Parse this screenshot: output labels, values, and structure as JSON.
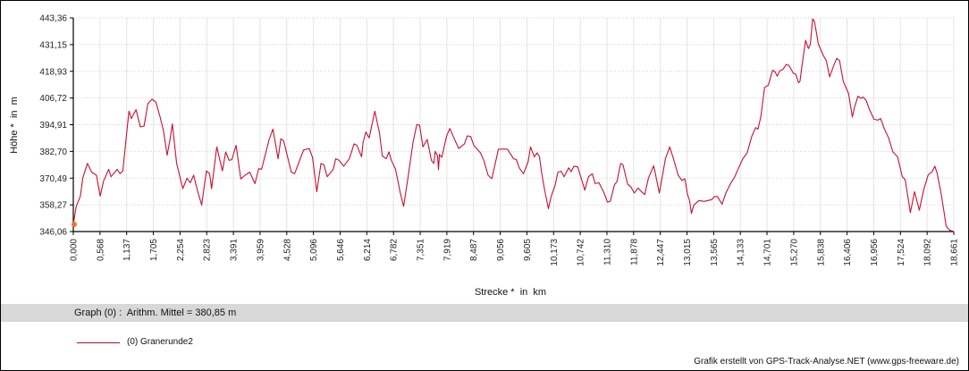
{
  "chart_data": {
    "type": "line",
    "title": "",
    "xlabel": "Strecke *  in  km",
    "ylabel": "Höhe *  in  m",
    "xlim": [
      0,
      18.661
    ],
    "ylim": [
      346.06,
      443.36
    ],
    "grid": true,
    "legend_position": "bottom-left",
    "y_ticks": [
      "346,06",
      "358,27",
      "370,49",
      "382,70",
      "394,91",
      "406,72",
      "418,93",
      "431,15",
      "443,36"
    ],
    "x_ticks": [
      "0,000",
      "0,568",
      "1,137",
      "1,705",
      "2,254",
      "2,823",
      "3,391",
      "3,959",
      "4,528",
      "5,096",
      "5,646",
      "6,214",
      "6,782",
      "7,351",
      "7,919",
      "8,487",
      "9,056",
      "9,605",
      "10,173",
      "10,742",
      "11,310",
      "11,878",
      "12,447",
      "13,015",
      "13,565",
      "14,133",
      "14,701",
      "15,270",
      "15,838",
      "16,406",
      "16,956",
      "17,524",
      "18,092",
      "18,661"
    ],
    "colors": {
      "series": "#c8102e",
      "marker": "#f07030",
      "grid": "#d0d0d0",
      "band": "#d8d8d8"
    },
    "series": [
      {
        "name": "(0) Granerunde2",
        "points": [
          [
            0.0,
            349.3
          ],
          [
            0.06,
            357.5
          ],
          [
            0.15,
            362.2
          ],
          [
            0.2,
            370.4
          ],
          [
            0.3,
            377.1
          ],
          [
            0.39,
            373.1
          ],
          [
            0.49,
            371.7
          ],
          [
            0.57,
            362.2
          ],
          [
            0.64,
            369.0
          ],
          [
            0.75,
            374.4
          ],
          [
            0.8,
            371.0
          ],
          [
            0.93,
            374.4
          ],
          [
            0.99,
            372.4
          ],
          [
            1.05,
            373.7
          ],
          [
            1.15,
            394.8
          ],
          [
            1.18,
            400.9
          ],
          [
            1.23,
            397.5
          ],
          [
            1.33,
            401.6
          ],
          [
            1.42,
            393.7
          ],
          [
            1.5,
            394.1
          ],
          [
            1.58,
            404.3
          ],
          [
            1.67,
            406.3
          ],
          [
            1.75,
            405.0
          ],
          [
            1.84,
            398.2
          ],
          [
            1.91,
            392.1
          ],
          [
            1.99,
            380.8
          ],
          [
            2.05,
            388.0
          ],
          [
            2.1,
            395.1
          ],
          [
            2.19,
            377.1
          ],
          [
            2.32,
            365.6
          ],
          [
            2.41,
            370.4
          ],
          [
            2.48,
            368.3
          ],
          [
            2.55,
            371.7
          ],
          [
            2.63,
            364.9
          ],
          [
            2.72,
            358.1
          ],
          [
            2.82,
            373.7
          ],
          [
            2.89,
            372.4
          ],
          [
            2.93,
            365.6
          ],
          [
            3.04,
            384.6
          ],
          [
            3.16,
            373.7
          ],
          [
            3.23,
            382.3
          ],
          [
            3.3,
            378.5
          ],
          [
            3.36,
            378.8
          ],
          [
            3.45,
            385.3
          ],
          [
            3.55,
            370.0
          ],
          [
            3.64,
            371.7
          ],
          [
            3.74,
            373.1
          ],
          [
            3.85,
            367.9
          ],
          [
            3.93,
            374.7
          ],
          [
            3.99,
            374.4
          ],
          [
            4.15,
            388.0
          ],
          [
            4.23,
            392.7
          ],
          [
            4.34,
            379.2
          ],
          [
            4.4,
            388.3
          ],
          [
            4.46,
            387.3
          ],
          [
            4.62,
            373.1
          ],
          [
            4.69,
            372.4
          ],
          [
            4.88,
            383.2
          ],
          [
            5.0,
            383.9
          ],
          [
            5.07,
            379.8
          ],
          [
            5.16,
            364.2
          ],
          [
            5.25,
            377.1
          ],
          [
            5.31,
            376.5
          ],
          [
            5.38,
            371.0
          ],
          [
            5.51,
            374.4
          ],
          [
            5.56,
            379.2
          ],
          [
            5.63,
            378.5
          ],
          [
            5.73,
            375.8
          ],
          [
            5.85,
            379.2
          ],
          [
            5.95,
            386.0
          ],
          [
            6.01,
            385.3
          ],
          [
            6.11,
            380.1
          ],
          [
            6.14,
            386.6
          ],
          [
            6.2,
            391.4
          ],
          [
            6.27,
            388.7
          ],
          [
            6.39,
            400.9
          ],
          [
            6.49,
            390.7
          ],
          [
            6.55,
            380.5
          ],
          [
            6.63,
            379.2
          ],
          [
            6.69,
            382.3
          ],
          [
            6.74,
            378.5
          ],
          [
            6.83,
            374.4
          ],
          [
            6.93,
            363.6
          ],
          [
            7.0,
            357.5
          ],
          [
            7.1,
            371.7
          ],
          [
            7.2,
            386.6
          ],
          [
            7.28,
            394.8
          ],
          [
            7.34,
            394.5
          ],
          [
            7.41,
            384.6
          ],
          [
            7.5,
            388.0
          ],
          [
            7.59,
            378.5
          ],
          [
            7.64,
            377.1
          ],
          [
            7.67,
            382.6
          ],
          [
            7.72,
            380.5
          ],
          [
            7.74,
            374.2
          ],
          [
            7.76,
            381.2
          ],
          [
            7.81,
            379.8
          ],
          [
            7.91,
            389.4
          ],
          [
            7.98,
            393.0
          ],
          [
            8.08,
            388.0
          ],
          [
            8.17,
            383.9
          ],
          [
            8.29,
            386.0
          ],
          [
            8.35,
            389.6
          ],
          [
            8.42,
            389.4
          ],
          [
            8.49,
            385.3
          ],
          [
            8.63,
            381.9
          ],
          [
            8.7,
            378.5
          ],
          [
            8.79,
            371.7
          ],
          [
            8.87,
            370.1
          ],
          [
            9.01,
            383.6
          ],
          [
            9.11,
            383.6
          ],
          [
            9.2,
            383.6
          ],
          [
            9.33,
            379.2
          ],
          [
            9.39,
            378.9
          ],
          [
            9.45,
            375.1
          ],
          [
            9.54,
            372.4
          ],
          [
            9.64,
            377.8
          ],
          [
            9.69,
            384.6
          ],
          [
            9.77,
            380.1
          ],
          [
            9.83,
            381.9
          ],
          [
            9.88,
            380.1
          ],
          [
            9.93,
            372.4
          ],
          [
            9.99,
            364.9
          ],
          [
            10.07,
            356.5
          ],
          [
            10.13,
            362.2
          ],
          [
            10.21,
            367.0
          ],
          [
            10.27,
            373.1
          ],
          [
            10.34,
            373.5
          ],
          [
            10.4,
            371.0
          ],
          [
            10.5,
            375.1
          ],
          [
            10.55,
            373.3
          ],
          [
            10.61,
            375.8
          ],
          [
            10.69,
            375.5
          ],
          [
            10.84,
            364.9
          ],
          [
            10.92,
            371.0
          ],
          [
            11.0,
            372.4
          ],
          [
            11.06,
            367.9
          ],
          [
            11.14,
            368.3
          ],
          [
            11.25,
            363.6
          ],
          [
            11.32,
            359.5
          ],
          [
            11.38,
            359.8
          ],
          [
            11.47,
            367.4
          ],
          [
            11.52,
            368.7
          ],
          [
            11.6,
            377.1
          ],
          [
            11.65,
            376.5
          ],
          [
            11.75,
            367.6
          ],
          [
            11.82,
            366.3
          ],
          [
            11.89,
            363.6
          ],
          [
            11.97,
            365.9
          ],
          [
            12.04,
            364.2
          ],
          [
            12.11,
            362.9
          ],
          [
            12.19,
            370.4
          ],
          [
            12.3,
            376.0
          ],
          [
            12.33,
            373.1
          ],
          [
            12.42,
            363.6
          ],
          [
            12.55,
            379.2
          ],
          [
            12.64,
            384.6
          ],
          [
            12.72,
            379.2
          ],
          [
            12.82,
            371.7
          ],
          [
            12.9,
            369.3
          ],
          [
            12.96,
            370.1
          ],
          [
            13.02,
            362.9
          ],
          [
            13.06,
            360.2
          ],
          [
            13.1,
            354.3
          ],
          [
            13.15,
            358.1
          ],
          [
            13.26,
            360.2
          ],
          [
            13.37,
            359.8
          ],
          [
            13.53,
            360.6
          ],
          [
            13.59,
            362.0
          ],
          [
            13.65,
            362.0
          ],
          [
            13.75,
            358.5
          ],
          [
            13.83,
            363.6
          ],
          [
            13.94,
            368.3
          ],
          [
            14.02,
            371.0
          ],
          [
            14.1,
            375.1
          ],
          [
            14.19,
            379.2
          ],
          [
            14.28,
            381.9
          ],
          [
            14.38,
            389.4
          ],
          [
            14.46,
            393.4
          ],
          [
            14.51,
            392.7
          ],
          [
            14.57,
            398.2
          ],
          [
            14.65,
            411.7
          ],
          [
            14.73,
            412.7
          ],
          [
            14.82,
            419.5
          ],
          [
            14.87,
            418.9
          ],
          [
            14.92,
            416.8
          ],
          [
            14.97,
            419.2
          ],
          [
            15.04,
            419.9
          ],
          [
            15.11,
            422.2
          ],
          [
            15.17,
            421.6
          ],
          [
            15.26,
            418.1
          ],
          [
            15.31,
            417.8
          ],
          [
            15.37,
            413.8
          ],
          [
            15.4,
            414.4
          ],
          [
            15.45,
            422.6
          ],
          [
            15.52,
            433.1
          ],
          [
            15.58,
            429.4
          ],
          [
            15.62,
            431.4
          ],
          [
            15.67,
            442.9
          ],
          [
            15.71,
            441.6
          ],
          [
            15.79,
            431.4
          ],
          [
            15.9,
            426.0
          ],
          [
            15.96,
            423.9
          ],
          [
            16.03,
            416.5
          ],
          [
            16.12,
            421.9
          ],
          [
            16.18,
            424.9
          ],
          [
            16.24,
            423.9
          ],
          [
            16.32,
            414.4
          ],
          [
            16.43,
            409.0
          ],
          [
            16.51,
            398.2
          ],
          [
            16.56,
            402.9
          ],
          [
            16.63,
            407.7
          ],
          [
            16.69,
            406.7
          ],
          [
            16.74,
            407.3
          ],
          [
            16.8,
            405.9
          ],
          [
            16.87,
            401.8
          ],
          [
            16.97,
            397.2
          ],
          [
            17.05,
            396.8
          ],
          [
            17.11,
            397.5
          ],
          [
            17.19,
            392.7
          ],
          [
            17.28,
            388.7
          ],
          [
            17.37,
            382.3
          ],
          [
            17.47,
            380.1
          ],
          [
            17.57,
            371.0
          ],
          [
            17.63,
            369.7
          ],
          [
            17.74,
            354.7
          ],
          [
            17.83,
            364.2
          ],
          [
            17.93,
            355.8
          ],
          [
            18.02,
            364.9
          ],
          [
            18.12,
            371.9
          ],
          [
            18.2,
            373.3
          ],
          [
            18.26,
            375.8
          ],
          [
            18.31,
            372.4
          ],
          [
            18.39,
            363.6
          ],
          [
            18.45,
            355.4
          ],
          [
            18.5,
            348.4
          ],
          [
            18.58,
            346.6
          ],
          [
            18.64,
            346.2
          ]
        ]
      }
    ]
  },
  "stats": {
    "text": "Graph (0) :  Arithm. Mittel = 380,85 m"
  },
  "legend": {
    "label": "(0) Granerunde2"
  },
  "footer": {
    "credit": "Grafik erstellt von GPS-Track-Analyse.NET (www.gps-freeware.de)"
  }
}
